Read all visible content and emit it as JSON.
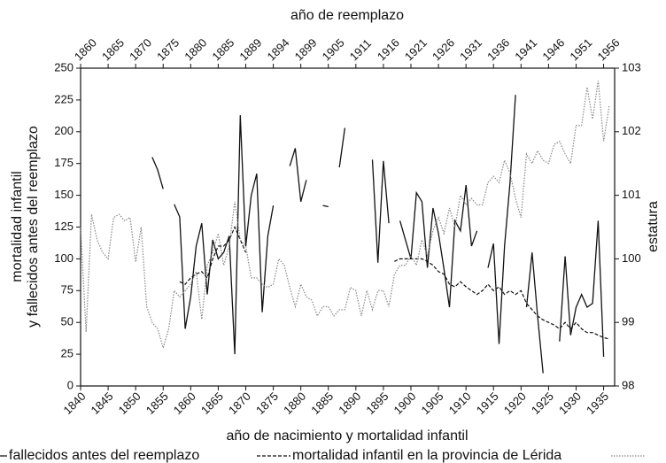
{
  "chart_data": {
    "type": "line",
    "xlabel": "año de nacimiento y mortalidad infantil",
    "x2label": "año de reemplazo",
    "ylabel": [
      "mortalidad infantil",
      "y fallecidos antes del reemplazo"
    ],
    "y2label": "estatura",
    "x": [
      1840,
      1841,
      1842,
      1843,
      1844,
      1845,
      1846,
      1847,
      1848,
      1849,
      1850,
      1851,
      1852,
      1853,
      1854,
      1855,
      1856,
      1857,
      1858,
      1859,
      1860,
      1861,
      1862,
      1863,
      1864,
      1865,
      1866,
      1867,
      1868,
      1869,
      1870,
      1871,
      1872,
      1873,
      1874,
      1875,
      1876,
      1877,
      1878,
      1879,
      1880,
      1881,
      1882,
      1883,
      1884,
      1885,
      1886,
      1887,
      1888,
      1889,
      1890,
      1891,
      1892,
      1893,
      1894,
      1895,
      1896,
      1897,
      1898,
      1899,
      1900,
      1901,
      1902,
      1903,
      1904,
      1905,
      1906,
      1907,
      1908,
      1909,
      1910,
      1911,
      1912,
      1913,
      1914,
      1915,
      1916,
      1917,
      1918,
      1919,
      1920,
      1921,
      1922,
      1923,
      1924,
      1925,
      1926,
      1927,
      1928,
      1929,
      1930,
      1931,
      1932,
      1933,
      1934,
      1935,
      1936
    ],
    "xlim": [
      1840,
      1937
    ],
    "xticks": [
      1840,
      1845,
      1850,
      1855,
      1860,
      1865,
      1870,
      1875,
      1880,
      1885,
      1890,
      1895,
      1900,
      1905,
      1910,
      1915,
      1920,
      1925,
      1930,
      1935
    ],
    "x2ticks": [
      {
        "value": 1840,
        "label": "1860"
      },
      {
        "value": 1845,
        "label": "1865"
      },
      {
        "value": 1850,
        "label": "1870"
      },
      {
        "value": 1855,
        "label": "1875"
      },
      {
        "value": 1860,
        "label": "1880"
      },
      {
        "value": 1865,
        "label": "1885"
      },
      {
        "value": 1870,
        "label": "1889"
      },
      {
        "value": 1875,
        "label": "1894"
      },
      {
        "value": 1880,
        "label": "1899"
      },
      {
        "value": 1885,
        "label": "1905"
      },
      {
        "value": 1890,
        "label": "1911"
      },
      {
        "value": 1895,
        "label": "1916"
      },
      {
        "value": 1900,
        "label": "1921"
      },
      {
        "value": 1905,
        "label": "1926"
      },
      {
        "value": 1910,
        "label": "1931"
      },
      {
        "value": 1915,
        "label": "1936"
      },
      {
        "value": 1920,
        "label": "1941"
      },
      {
        "value": 1925,
        "label": "1946"
      },
      {
        "value": 1930,
        "label": "1951"
      },
      {
        "value": 1935,
        "label": "1956"
      }
    ],
    "ylim": [
      0,
      250
    ],
    "yticks": [
      0,
      25,
      50,
      75,
      100,
      125,
      150,
      175,
      200,
      225,
      250
    ],
    "y2lim": [
      98,
      103
    ],
    "y2ticks": [
      98,
      99,
      100,
      101,
      102,
      103
    ],
    "series": [
      {
        "name": "fallecidos antes del reemplazo",
        "color": "#111111",
        "style": "solid",
        "values": [
          null,
          null,
          null,
          null,
          null,
          null,
          null,
          null,
          null,
          null,
          null,
          null,
          null,
          180,
          170,
          155,
          null,
          143,
          133,
          45,
          70,
          110,
          128,
          72,
          115,
          100,
          105,
          118,
          25,
          213,
          110,
          150,
          167,
          58,
          118,
          142,
          null,
          null,
          173,
          187,
          145,
          162,
          null,
          null,
          142,
          141,
          null,
          172,
          203,
          null,
          null,
          null,
          null,
          178,
          97,
          177,
          128,
          null,
          130,
          115,
          100,
          152,
          145,
          93,
          140,
          120,
          92,
          62,
          130,
          122,
          158,
          110,
          122,
          null,
          93,
          112,
          33,
          110,
          160,
          229,
          null,
          62,
          105,
          55,
          10,
          null,
          null,
          35,
          102,
          40,
          62,
          72,
          62,
          65,
          130,
          23,
          null
        ]
      },
      {
        "name": "mortalidad infantil en la provincia de Lérida",
        "color": "#111111",
        "style": "dashed",
        "values": [
          null,
          null,
          null,
          null,
          null,
          null,
          null,
          null,
          null,
          null,
          null,
          null,
          null,
          null,
          null,
          null,
          null,
          null,
          82,
          80,
          85,
          88,
          90,
          85,
          100,
          110,
          110,
          115,
          125,
          115,
          105,
          null,
          null,
          null,
          null,
          null,
          null,
          null,
          null,
          null,
          null,
          null,
          null,
          null,
          null,
          null,
          null,
          null,
          null,
          null,
          null,
          null,
          null,
          null,
          null,
          null,
          null,
          98,
          100,
          100,
          100,
          100,
          100,
          98,
          95,
          90,
          88,
          80,
          78,
          82,
          78,
          75,
          72,
          75,
          80,
          75,
          78,
          72,
          75,
          72,
          75,
          65,
          60,
          55,
          52,
          50,
          48,
          45,
          50,
          45,
          50,
          45,
          42,
          42,
          40,
          38,
          37
        ]
      },
      {
        "color": "#888888",
        "style": "dotted",
        "axis": "y2",
        "values": [
          100.5,
          98.85,
          100.7,
          100.3,
          100.1,
          100.0,
          100.65,
          100.7,
          100.6,
          100.65,
          99.95,
          100.5,
          99.25,
          99.0,
          98.9,
          98.6,
          98.9,
          99.5,
          99.4,
          99.5,
          99.6,
          99.8,
          99.05,
          99.9,
          100.1,
          100.4,
          99.9,
          100.2,
          100.9,
          100.3,
          100.2,
          99.7,
          99.7,
          99.6,
          99.55,
          99.6,
          100.0,
          99.9,
          99.55,
          99.25,
          99.6,
          99.4,
          99.35,
          99.1,
          99.25,
          99.25,
          99.1,
          99.2,
          99.2,
          99.55,
          99.5,
          99.1,
          99.5,
          99.2,
          99.5,
          99.5,
          99.25,
          99.75,
          99.9,
          99.9,
          100.05,
          99.9,
          100.3,
          100.05,
          100.45,
          100.65,
          100.4,
          100.8,
          100.5,
          101.0,
          100.85,
          100.95,
          100.85,
          100.85,
          101.2,
          101.3,
          101.2,
          101.55,
          101.35,
          100.95,
          100.65,
          101.65,
          101.5,
          101.7,
          101.55,
          101.5,
          101.8,
          101.85,
          101.65,
          101.5,
          102.1,
          102.1,
          102.7,
          102.2,
          102.8,
          101.85,
          102.4
        ]
      }
    ]
  }
}
